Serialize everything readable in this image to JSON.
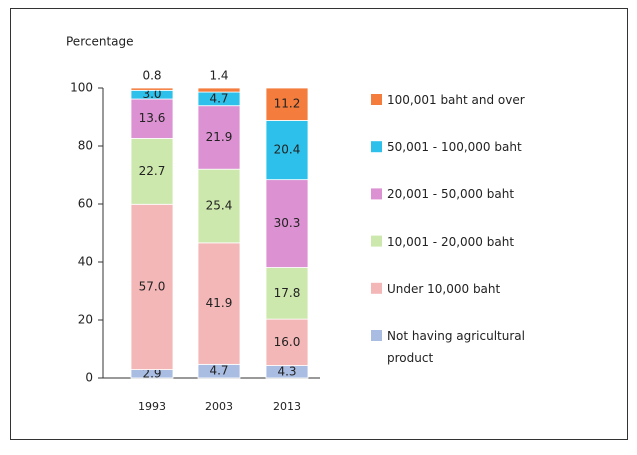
{
  "chart_data": {
    "type": "stacked_bar",
    "y_label": "Percentage",
    "categories": [
      "1993",
      "2003",
      "2013"
    ],
    "ylim": [
      0,
      100
    ],
    "yticks": [
      0,
      20,
      40,
      60,
      80,
      100
    ],
    "series": [
      {
        "name": "Not having agricultural product",
        "color": "#a9bde3",
        "values": [
          2.9,
          4.7,
          4.3
        ]
      },
      {
        "name": "Under 10,000 baht",
        "color": "#f4b7b7",
        "values": [
          57,
          41.9,
          16
        ],
        "value_labels": [
          "57.0",
          "41.9",
          "16.0"
        ]
      },
      {
        "name": "10,001 - 20,000 baht",
        "color": "#cde8ad",
        "values": [
          22.7,
          25.4,
          17.8
        ]
      },
      {
        "name": "20,001 - 50,000 baht",
        "color": "#dc92d2",
        "values": [
          13.6,
          21.9,
          30.3
        ]
      },
      {
        "name": "50,001 - 100,000 baht",
        "color": "#2cc0ea",
        "values": [
          3,
          4.7,
          20.4
        ],
        "value_labels": [
          "3.0",
          "4.7",
          "20.4"
        ]
      },
      {
        "name": "100,001 baht and over",
        "color": "#f47c3c",
        "values": [
          0.8,
          1.4,
          11.2
        ]
      }
    ]
  }
}
